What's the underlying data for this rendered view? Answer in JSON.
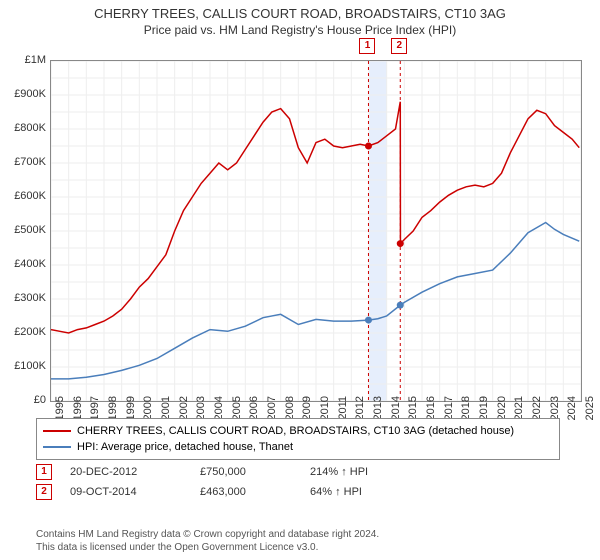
{
  "title_line1": "CHERRY TREES, CALLIS COURT ROAD, BROADSTAIRS, CT10 3AG",
  "title_line2": "Price paid vs. HM Land Registry's House Price Index (HPI)",
  "chart": {
    "type": "line",
    "background_color": "#ffffff",
    "grid_minor_color": "#eeeeee",
    "axis_color": "#888888",
    "label_fontsize": 11,
    "x": {
      "min": 1995,
      "max": 2025,
      "tick_step": 1,
      "labels": [
        "1995",
        "1996",
        "1997",
        "1998",
        "1999",
        "2000",
        "2001",
        "2002",
        "2003",
        "2004",
        "2005",
        "2006",
        "2007",
        "2008",
        "2009",
        "2010",
        "2011",
        "2012",
        "2013",
        "2014",
        "2015",
        "2016",
        "2017",
        "2018",
        "2019",
        "2020",
        "2021",
        "2022",
        "2023",
        "2024",
        "2025"
      ]
    },
    "y": {
      "min": 0,
      "max": 1000000,
      "tick_step": 100000,
      "labels": [
        "£0",
        "£100K",
        "£200K",
        "£300K",
        "£400K",
        "£500K",
        "£600K",
        "£700K",
        "£800K",
        "£900K",
        "£1M"
      ]
    },
    "shade_band": {
      "x_start": 2012.97,
      "x_end": 2014.0,
      "color": "#e6eefc"
    },
    "series": [
      {
        "name": "property",
        "color": "#cc0000",
        "width": 1.5,
        "points": [
          [
            1995,
            210000
          ],
          [
            1995.5,
            205000
          ],
          [
            1996,
            200000
          ],
          [
            1996.5,
            210000
          ],
          [
            1997,
            215000
          ],
          [
            1997.5,
            225000
          ],
          [
            1998,
            235000
          ],
          [
            1998.5,
            250000
          ],
          [
            1999,
            270000
          ],
          [
            1999.5,
            300000
          ],
          [
            2000,
            335000
          ],
          [
            2000.5,
            360000
          ],
          [
            2001,
            395000
          ],
          [
            2001.5,
            430000
          ],
          [
            2002,
            500000
          ],
          [
            2002.5,
            560000
          ],
          [
            2003,
            600000
          ],
          [
            2003.5,
            640000
          ],
          [
            2004,
            670000
          ],
          [
            2004.5,
            700000
          ],
          [
            2005,
            680000
          ],
          [
            2005.5,
            700000
          ],
          [
            2006,
            740000
          ],
          [
            2006.5,
            780000
          ],
          [
            2007,
            820000
          ],
          [
            2007.5,
            850000
          ],
          [
            2008,
            860000
          ],
          [
            2008.5,
            830000
          ],
          [
            2009,
            745000
          ],
          [
            2009.5,
            700000
          ],
          [
            2010,
            760000
          ],
          [
            2010.5,
            770000
          ],
          [
            2011,
            750000
          ],
          [
            2011.5,
            745000
          ],
          [
            2012,
            750000
          ],
          [
            2012.5,
            755000
          ],
          [
            2012.97,
            750000
          ],
          [
            2013.5,
            760000
          ],
          [
            2014,
            780000
          ],
          [
            2014.5,
            800000
          ],
          [
            2014.77,
            880000
          ],
          [
            2014.78,
            463000
          ],
          [
            2015,
            475000
          ],
          [
            2015.5,
            500000
          ],
          [
            2016,
            540000
          ],
          [
            2016.5,
            560000
          ],
          [
            2017,
            585000
          ],
          [
            2017.5,
            605000
          ],
          [
            2018,
            620000
          ],
          [
            2018.5,
            630000
          ],
          [
            2019,
            635000
          ],
          [
            2019.5,
            630000
          ],
          [
            2020,
            640000
          ],
          [
            2020.5,
            670000
          ],
          [
            2021,
            730000
          ],
          [
            2021.5,
            780000
          ],
          [
            2022,
            830000
          ],
          [
            2022.5,
            855000
          ],
          [
            2023,
            845000
          ],
          [
            2023.5,
            810000
          ],
          [
            2024,
            790000
          ],
          [
            2024.5,
            770000
          ],
          [
            2024.9,
            745000
          ]
        ]
      },
      {
        "name": "hpi",
        "color": "#4a7ebb",
        "width": 1.5,
        "points": [
          [
            1995,
            65000
          ],
          [
            1996,
            65000
          ],
          [
            1997,
            70000
          ],
          [
            1998,
            78000
          ],
          [
            1999,
            90000
          ],
          [
            2000,
            105000
          ],
          [
            2001,
            125000
          ],
          [
            2002,
            155000
          ],
          [
            2003,
            185000
          ],
          [
            2004,
            210000
          ],
          [
            2005,
            205000
          ],
          [
            2006,
            220000
          ],
          [
            2007,
            245000
          ],
          [
            2008,
            255000
          ],
          [
            2009,
            225000
          ],
          [
            2010,
            240000
          ],
          [
            2011,
            235000
          ],
          [
            2012,
            235000
          ],
          [
            2012.97,
            238000
          ],
          [
            2013.5,
            242000
          ],
          [
            2014,
            250000
          ],
          [
            2014.77,
            282000
          ],
          [
            2015,
            290000
          ],
          [
            2016,
            320000
          ],
          [
            2017,
            345000
          ],
          [
            2018,
            365000
          ],
          [
            2019,
            375000
          ],
          [
            2020,
            385000
          ],
          [
            2021,
            435000
          ],
          [
            2022,
            495000
          ],
          [
            2023,
            525000
          ],
          [
            2023.5,
            505000
          ],
          [
            2024,
            490000
          ],
          [
            2024.9,
            470000
          ]
        ]
      }
    ],
    "transaction_markers": [
      {
        "n": "1",
        "x": 2012.97,
        "y": 750000,
        "color": "#cc0000"
      },
      {
        "n": "2",
        "x": 2014.77,
        "y": 463000,
        "color": "#cc0000"
      }
    ],
    "point_markers": [
      {
        "x": 2012.97,
        "y": 750000,
        "color": "#cc0000"
      },
      {
        "x": 2012.97,
        "y": 238000,
        "color": "#4a7ebb"
      },
      {
        "x": 2014.77,
        "y": 463000,
        "color": "#cc0000"
      },
      {
        "x": 2014.77,
        "y": 282000,
        "color": "#4a7ebb"
      }
    ]
  },
  "legend": {
    "items": [
      {
        "label": "CHERRY TREES, CALLIS COURT ROAD, BROADSTAIRS, CT10 3AG (detached house)",
        "color": "#cc0000"
      },
      {
        "label": "HPI: Average price, detached house, Thanet",
        "color": "#4a7ebb"
      }
    ]
  },
  "transactions": [
    {
      "n": "1",
      "color": "#cc0000",
      "date": "20-DEC-2012",
      "price": "£750,000",
      "pct": "214% ↑ HPI"
    },
    {
      "n": "2",
      "color": "#cc0000",
      "date": "09-OCT-2014",
      "price": "£463,000",
      "pct": "64% ↑ HPI"
    }
  ],
  "footer_line1": "Contains HM Land Registry data © Crown copyright and database right 2024.",
  "footer_line2": "This data is licensed under the Open Government Licence v3.0."
}
